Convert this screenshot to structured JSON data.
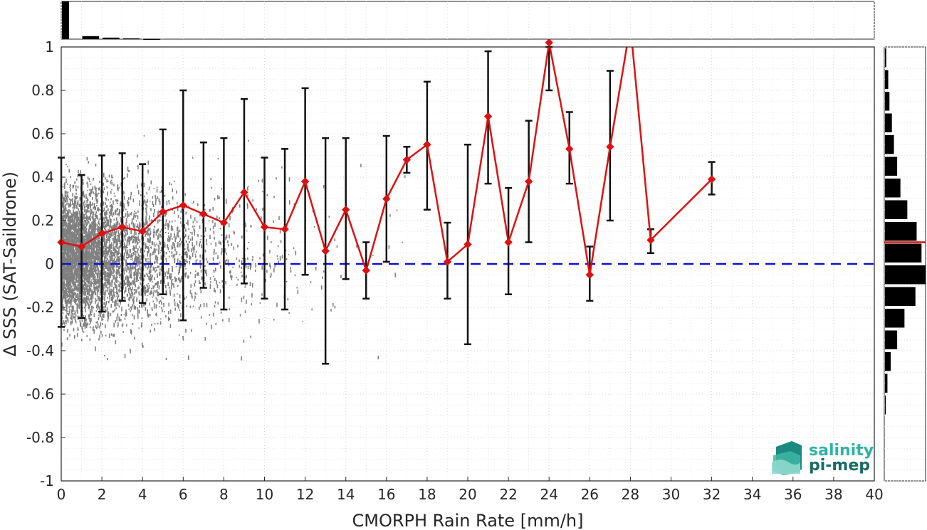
{
  "chart_data": {
    "type": "scatter",
    "xlabel": "CMORPH Rain Rate [mm/h]",
    "ylabel": "Δ SSS (SAT-Saildrone)",
    "xlim": [
      0,
      40
    ],
    "ylim": [
      -1,
      1
    ],
    "xticks": [
      "0",
      "2",
      "4",
      "6",
      "8",
      "10",
      "12",
      "14",
      "16",
      "18",
      "20",
      "22",
      "24",
      "26",
      "28",
      "30",
      "32",
      "34",
      "36",
      "38",
      "40"
    ],
    "yticks": [
      "-1",
      "-0.8",
      "-0.6",
      "-0.4",
      "-0.2",
      "0",
      "0.2",
      "0.4",
      "0.6",
      "0.8",
      "1"
    ],
    "grid": true,
    "reference_line": {
      "y": 0,
      "style": "dashed",
      "color": "#1010d0"
    },
    "bin_means": {
      "color": "#dd1111",
      "x": [
        0,
        1,
        2,
        3,
        4,
        5,
        6,
        7,
        8,
        9,
        10,
        11,
        12,
        13,
        14,
        15,
        16,
        17,
        18,
        19,
        20,
        21,
        22,
        23,
        24,
        25,
        26,
        27,
        28,
        29,
        32
      ],
      "mean": [
        0.1,
        0.08,
        0.14,
        0.17,
        0.15,
        0.24,
        0.27,
        0.23,
        0.19,
        0.33,
        0.17,
        0.16,
        0.38,
        0.06,
        0.25,
        -0.03,
        0.3,
        0.48,
        0.55,
        0.01,
        0.09,
        0.68,
        0.1,
        0.38,
        1.02,
        0.53,
        -0.05,
        0.54,
        1.1,
        0.11,
        0.39
      ],
      "err_low": [
        -0.29,
        -0.25,
        -0.22,
        -0.17,
        -0.18,
        -0.14,
        -0.26,
        -0.11,
        -0.21,
        -0.09,
        -0.16,
        -0.21,
        -0.05,
        -0.46,
        -0.07,
        -0.16,
        0.01,
        0.42,
        0.25,
        -0.16,
        -0.37,
        0.37,
        -0.14,
        0.1,
        0.8,
        0.37,
        -0.17,
        0.2,
        null,
        0.05,
        0.32
      ],
      "err_high": [
        0.49,
        0.41,
        0.5,
        0.51,
        0.46,
        0.62,
        0.8,
        0.56,
        0.58,
        0.76,
        0.49,
        0.53,
        0.81,
        0.58,
        0.58,
        0.1,
        0.59,
        0.54,
        0.84,
        0.19,
        0.55,
        0.98,
        0.35,
        0.66,
        1.02,
        0.7,
        0.08,
        0.89,
        null,
        0.16,
        0.47
      ]
    },
    "scatter_color": "#808080",
    "top_histogram": {
      "description_of_bins": "counts per rain-rate bin (relative)",
      "x": [
        0,
        1,
        2,
        3,
        4
      ],
      "values": [
        1.0,
        0.08,
        0.04,
        0.02,
        0.01
      ]
    },
    "right_histogram": {
      "y_centers": [
        0.95,
        0.85,
        0.75,
        0.65,
        0.55,
        0.45,
        0.35,
        0.25,
        0.15,
        0.05,
        -0.05,
        -0.15,
        -0.25,
        -0.35,
        -0.45,
        -0.55,
        -0.65
      ],
      "values": [
        0.03,
        0.08,
        0.11,
        0.17,
        0.22,
        0.3,
        0.38,
        0.55,
        0.78,
        0.9,
        1.0,
        0.75,
        0.48,
        0.3,
        0.14,
        0.06,
        0.02
      ],
      "mean_line_y": 0.1
    }
  },
  "logo": {
    "line1": "salinity",
    "line2": "pi-mep"
  }
}
